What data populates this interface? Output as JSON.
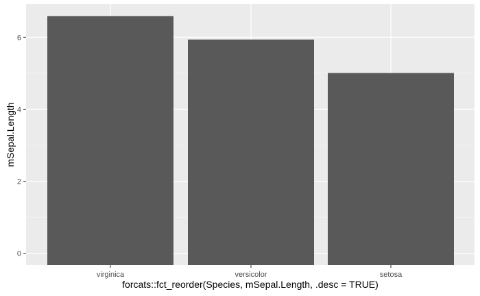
{
  "chart_data": {
    "type": "bar",
    "title": "",
    "xlabel": "forcats::fct_reorder(Species, mSepal.Length, .desc = TRUE)",
    "ylabel": "mSepal.Length",
    "categories": [
      "virginica",
      "versicolor",
      "setosa"
    ],
    "values": [
      6.588,
      5.936,
      5.006
    ],
    "ylim": [
      -0.33,
      6.92
    ],
    "yticks": [
      0,
      2,
      4,
      6
    ],
    "ytick_labels": [
      "0",
      "2",
      "4",
      "6"
    ],
    "grid": true,
    "legend": "none",
    "colors": {
      "panel_background": "#ebebeb",
      "grid_major": "#ffffff",
      "grid_minor": "#f4f4f4",
      "bar_fill": "#595959",
      "tick_text": "#4d4d4d",
      "axis_title_text": "#000000",
      "tick_mark": "#333333"
    }
  }
}
